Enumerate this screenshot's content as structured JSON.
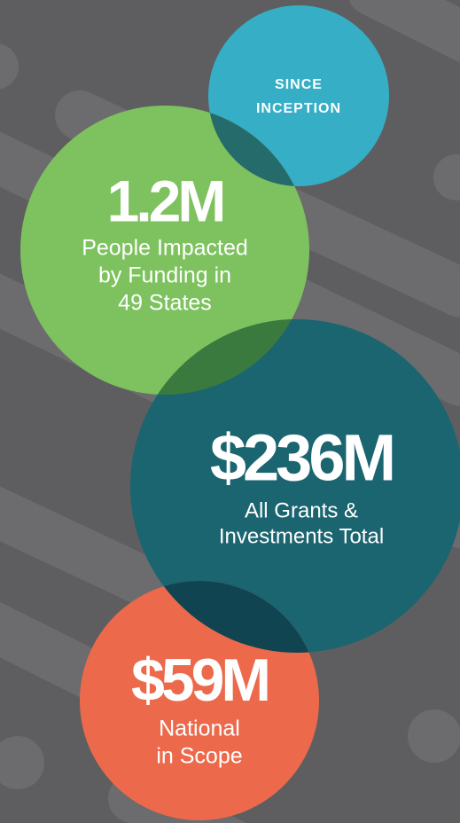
{
  "badge": {
    "lines": [
      "SINCE",
      "INCEPTION"
    ]
  },
  "stats": [
    {
      "value": "1.2M",
      "description": [
        "People Impacted",
        "by Funding in",
        "49 States"
      ]
    },
    {
      "value": "$236M",
      "description": [
        "All Grants &",
        "Investments Total"
      ]
    },
    {
      "value": "$59M",
      "description": [
        "National",
        "in Scope"
      ]
    }
  ]
}
